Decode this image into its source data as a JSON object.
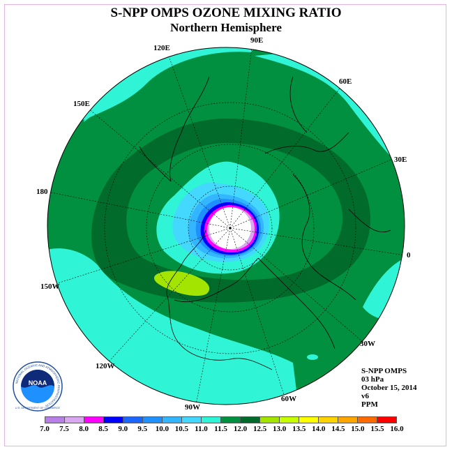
{
  "title": "S-NPP OMPS OZONE MIXING RATIO",
  "subtitle": "Northern Hemisphere",
  "longitude_labels": [
    "90E",
    "60E",
    "30E",
    "0",
    "30W",
    "60W",
    "90W",
    "120W",
    "150W",
    "180",
    "150E",
    "120E"
  ],
  "info": {
    "instrument": "S-NPP OMPS",
    "level": "03 hPa",
    "date": "October 15, 2014",
    "version": "v6",
    "units": "PPM"
  },
  "colorbar": {
    "ticks": [
      "7.0",
      "7.5",
      "8.0",
      "8.5",
      "9.0",
      "9.5",
      "10.0",
      "10.5",
      "11.0",
      "11.5",
      "12.0",
      "12.5",
      "13.0",
      "13.5",
      "14.0",
      "14.5",
      "15.0",
      "15.5",
      "16.0"
    ],
    "colors": [
      "#b87fe6",
      "#d9a8f0",
      "#ff00ff",
      "#0000ff",
      "#1a66ff",
      "#1e90ff",
      "#33b5ff",
      "#44d8ff",
      "#2ff5d6",
      "#009040",
      "#006b2b",
      "#a3e400",
      "#c8ff00",
      "#ffff00",
      "#ffd400",
      "#ffa500",
      "#ff6a00",
      "#ff0000",
      "#8b5a3a"
    ]
  },
  "logo": {
    "text": "NOAA",
    "ring_text": "NATIONAL OCEANIC AND ATMOSPHERIC ADMINISTRATION",
    "bottom_text": "U.S. DEPARTMENT OF COMMERCE"
  }
}
